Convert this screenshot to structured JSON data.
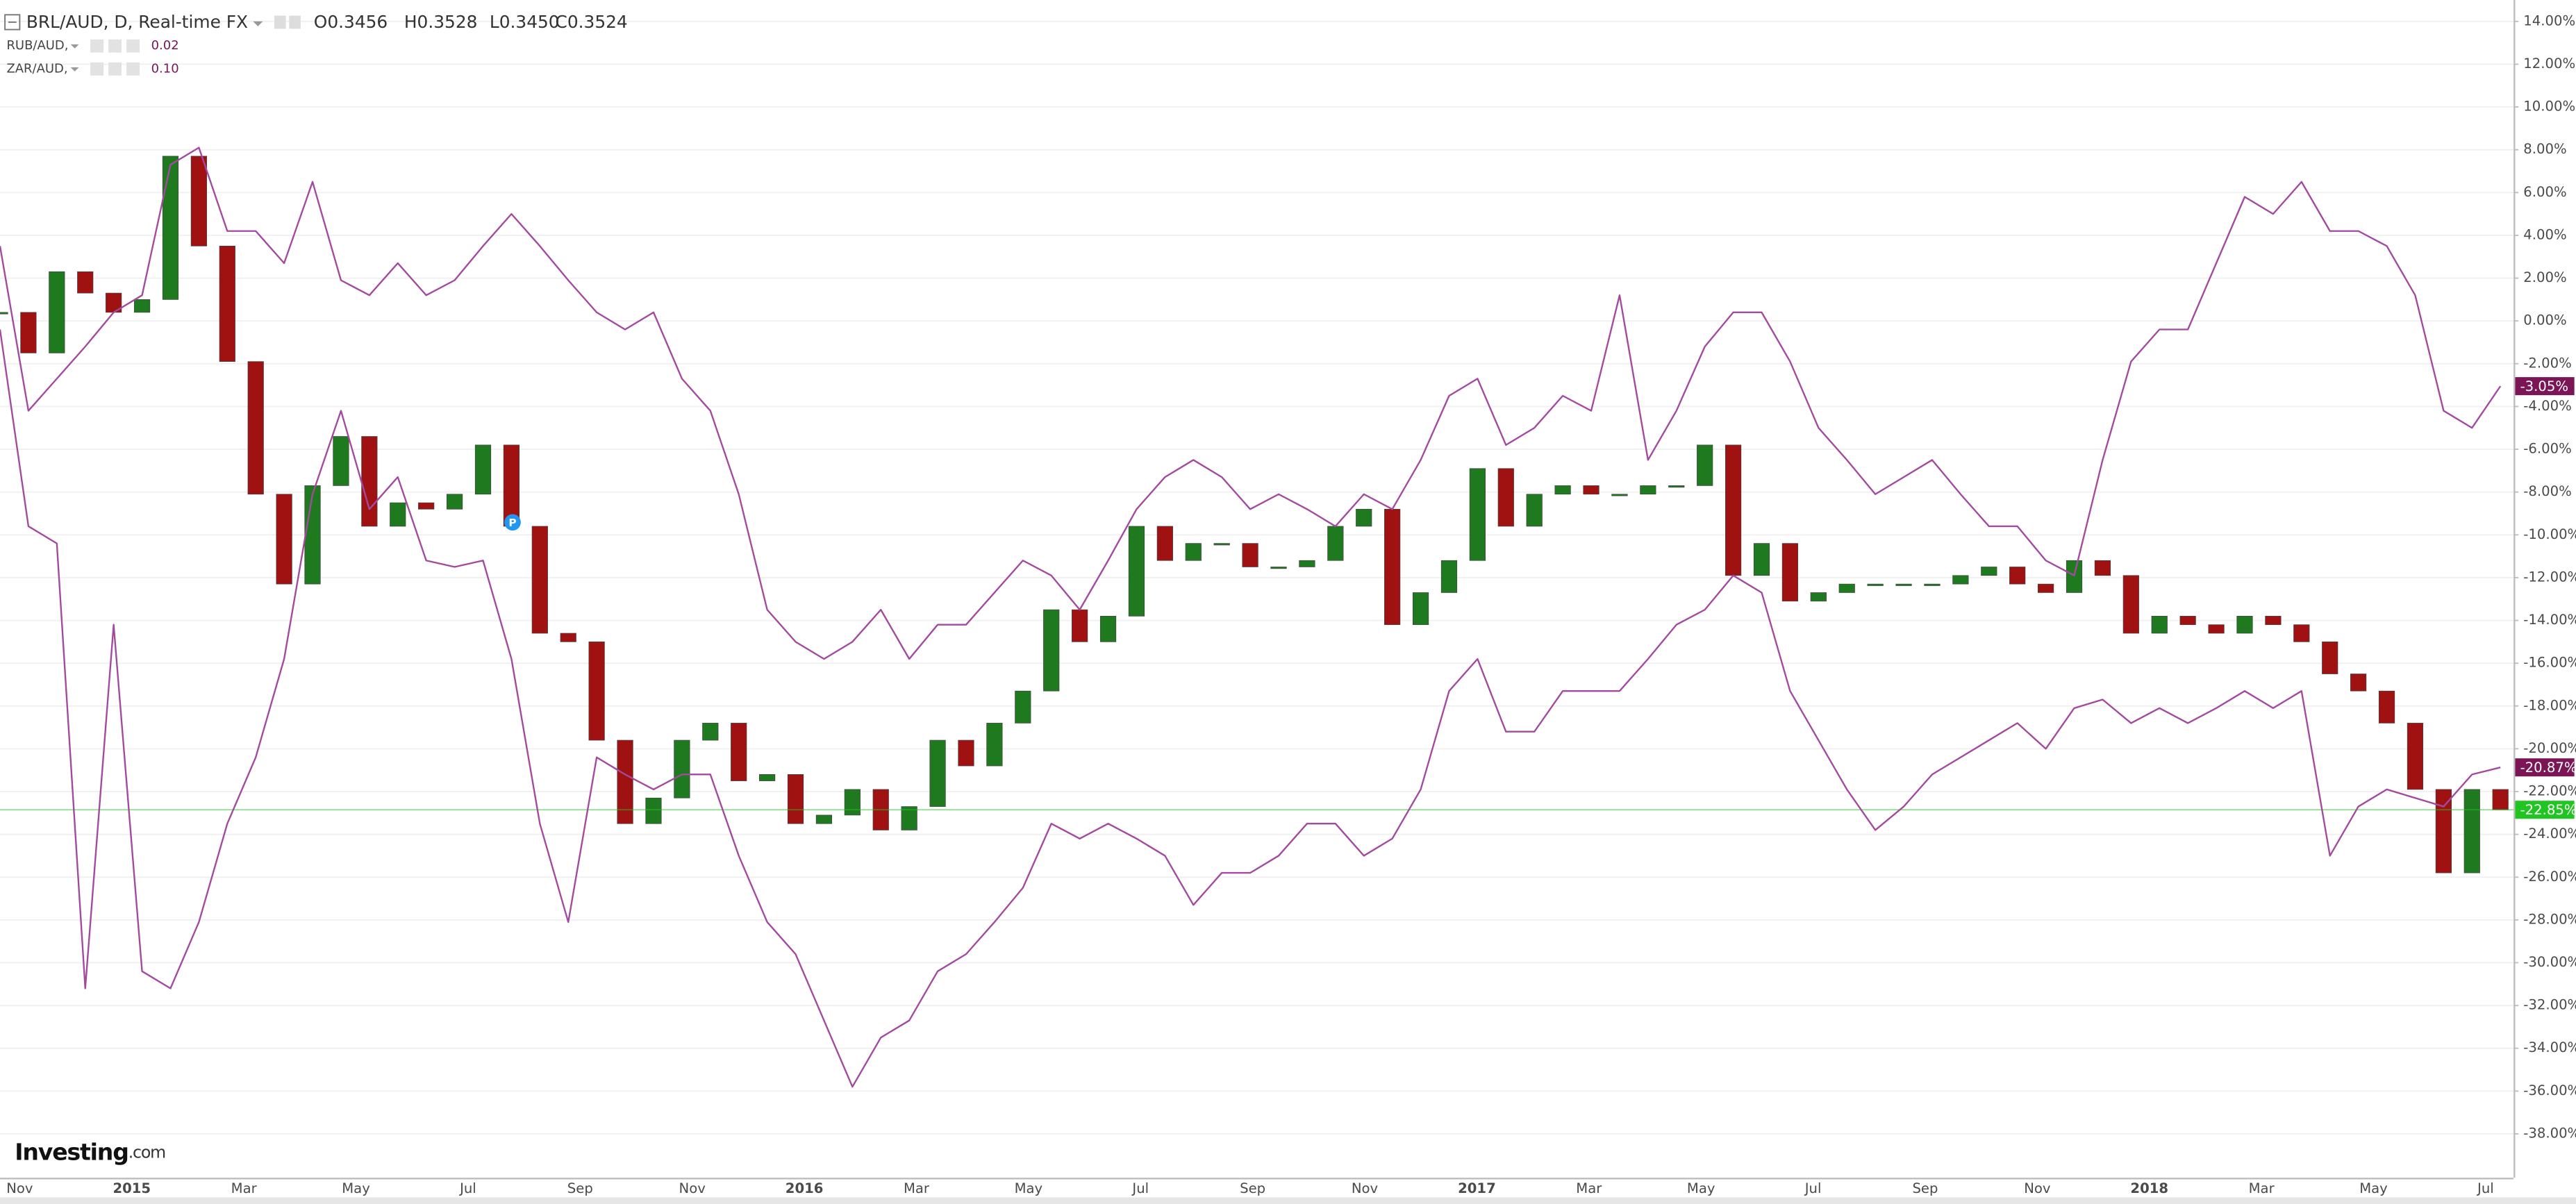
{
  "chart_data": {
    "type": "overlay",
    "ylim": [
      -40.05,
      15
    ],
    "yticks": [
      {
        "value": 14,
        "label": "14.00%"
      },
      {
        "value": 12,
        "label": "12.00%"
      },
      {
        "value": 10,
        "label": "10.00%"
      },
      {
        "value": 8,
        "label": "8.00%"
      },
      {
        "value": 6,
        "label": "6.00%"
      },
      {
        "value": 4,
        "label": "4.00%"
      },
      {
        "value": 2,
        "label": "2.00%"
      },
      {
        "value": 0,
        "label": "0.00%"
      },
      {
        "value": -2,
        "label": "-2.00%"
      },
      {
        "value": -4,
        "label": "-4.00%"
      },
      {
        "value": -6,
        "label": "-6.00%"
      },
      {
        "value": -8,
        "label": "-8.00%"
      },
      {
        "value": -10,
        "label": "-10.00%"
      },
      {
        "value": -12,
        "label": "-12.00%"
      },
      {
        "value": -14,
        "label": "-14.00%"
      },
      {
        "value": -16,
        "label": "-16.00%"
      },
      {
        "value": -18,
        "label": "-18.00%"
      },
      {
        "value": -20,
        "label": "-20.00%"
      },
      {
        "value": -22,
        "label": "-22.00%"
      },
      {
        "value": -24,
        "label": "-24.00%"
      },
      {
        "value": -26,
        "label": "-26.00%"
      },
      {
        "value": -28,
        "label": "-28.00%"
      },
      {
        "value": -30,
        "label": "-30.00%"
      },
      {
        "value": -32,
        "label": "-32.00%"
      },
      {
        "value": -34,
        "label": "-34.00%"
      },
      {
        "value": -36,
        "label": "-36.00%"
      },
      {
        "value": -38,
        "label": "-38.00%"
      }
    ],
    "xticks": [
      "Nov",
      "2015",
      "Mar",
      "May",
      "Jul",
      "Sep",
      "Nov",
      "2016",
      "Mar",
      "May",
      "Jul",
      "Sep",
      "Nov",
      "2017",
      "Mar",
      "May",
      "Jul",
      "Sep",
      "Nov",
      "2018",
      "Mar",
      "May",
      "Jul"
    ],
    "grid": true,
    "marker": "P",
    "watermark": [
      "Investing",
      ".com"
    ],
    "series": [
      {
        "name": "BRL/AUD, D, Real-time FX",
        "type": "candlestick",
        "ohlc": [
          "O0.3456",
          "H0.3528",
          "L0.3450",
          "C0.3524"
        ],
        "up_color": "#1f7a1f",
        "down_color": "#a01212",
        "color": "#21c521",
        "last_label": "-22.85%",
        "values": [
          0.4,
          -1.5,
          2.3,
          1.3,
          0.4,
          1.0,
          7.7,
          3.5,
          -1.9,
          -8.1,
          -12.3,
          -7.7,
          -5.4,
          -9.6,
          -8.5,
          -8.8,
          -8.1,
          -5.8,
          -9.6,
          -14.6,
          -15.0,
          -19.6,
          -23.5,
          -22.3,
          -19.6,
          -18.8,
          -21.5,
          -21.2,
          -23.5,
          -23.1,
          -21.9,
          -23.8,
          -22.7,
          -19.6,
          -20.8,
          -18.8,
          -17.3,
          -13.5,
          -15.0,
          -13.8,
          -9.6,
          -11.2,
          -10.4,
          -10.4,
          -11.5,
          -11.5,
          -11.2,
          -9.6,
          -8.8,
          -14.2,
          -12.7,
          -11.2,
          -6.9,
          -9.6,
          -8.1,
          -7.7,
          -8.1,
          -8.1,
          -7.7,
          -7.7,
          -5.8,
          -11.9,
          -10.4,
          -13.1,
          -12.7,
          -12.3,
          -12.3,
          -12.3,
          -12.3,
          -11.9,
          -11.5,
          -12.3,
          -12.7,
          -11.2,
          -11.9,
          -14.6,
          -13.8,
          -14.2,
          -14.6,
          -13.8,
          -14.2,
          -15.0,
          -16.5,
          -17.3,
          -18.8,
          -21.9,
          -25.8,
          -21.9,
          -22.85
        ]
      },
      {
        "name": "RUB/AUD,",
        "type": "line",
        "color": "#a3499f",
        "label_color": "#7b1556",
        "price": "0.02",
        "last_label": "-20.87%",
        "values": [
          -0.4,
          -9.6,
          -10.4,
          -31.2,
          -14.2,
          -30.4,
          -31.2,
          -28.1,
          -23.5,
          -20.4,
          -15.8,
          -8.1,
          -4.2,
          -8.8,
          -7.3,
          -11.2,
          -11.5,
          -11.2,
          -15.8,
          -23.5,
          -28.1,
          -20.4,
          -21.2,
          -21.9,
          -21.2,
          -21.2,
          -25.0,
          -28.1,
          -29.6,
          -32.7,
          -35.8,
          -33.5,
          -32.7,
          -30.4,
          -29.6,
          -28.1,
          -26.5,
          -23.5,
          -24.2,
          -23.5,
          -24.2,
          -25.0,
          -27.3,
          -25.8,
          -25.8,
          -25.0,
          -23.5,
          -23.5,
          -25.0,
          -24.2,
          -21.9,
          -17.3,
          -15.8,
          -19.2,
          -19.2,
          -17.3,
          -17.3,
          -17.3,
          -15.8,
          -14.2,
          -13.5,
          -11.9,
          -12.7,
          -17.3,
          -19.6,
          -21.9,
          -23.8,
          -22.7,
          -21.2,
          -20.4,
          -19.6,
          -18.8,
          -20.0,
          -18.1,
          -17.7,
          -18.8,
          -18.1,
          -18.8,
          -18.1,
          -17.3,
          -18.1,
          -17.3,
          -25.0,
          -22.7,
          -21.9,
          -22.3,
          -22.7,
          -21.2,
          -20.87
        ]
      },
      {
        "name": "ZAR/AUD,",
        "type": "line",
        "color": "#a3499f",
        "label_color": "#7b1556",
        "price": "0.10",
        "last_label": "-3.05%",
        "values": [
          3.5,
          -4.2,
          -2.7,
          -1.2,
          0.4,
          1.2,
          7.3,
          8.1,
          4.2,
          4.2,
          2.7,
          6.5,
          1.9,
          1.2,
          2.7,
          1.2,
          1.9,
          3.5,
          5.0,
          3.5,
          1.9,
          0.4,
          -0.4,
          0.4,
          -2.7,
          -4.2,
          -8.1,
          -13.5,
          -15.0,
          -15.8,
          -15.0,
          -13.5,
          -15.8,
          -14.2,
          -14.2,
          -12.7,
          -11.2,
          -11.9,
          -13.5,
          -11.2,
          -8.8,
          -7.3,
          -6.5,
          -7.3,
          -8.8,
          -8.1,
          -8.8,
          -9.6,
          -8.1,
          -8.8,
          -6.5,
          -3.5,
          -2.7,
          -5.8,
          -5.0,
          -3.5,
          -4.2,
          1.2,
          -6.5,
          -4.2,
          -1.2,
          0.4,
          0.4,
          -1.9,
          -5.0,
          -6.5,
          -8.1,
          -7.3,
          -6.5,
          -8.1,
          -9.6,
          -9.6,
          -11.2,
          -11.9,
          -6.5,
          -1.9,
          -0.4,
          -0.4,
          2.7,
          5.8,
          5.0,
          6.5,
          4.2,
          4.2,
          3.5,
          1.2,
          -4.2,
          -5.0,
          -3.05
        ]
      }
    ]
  }
}
